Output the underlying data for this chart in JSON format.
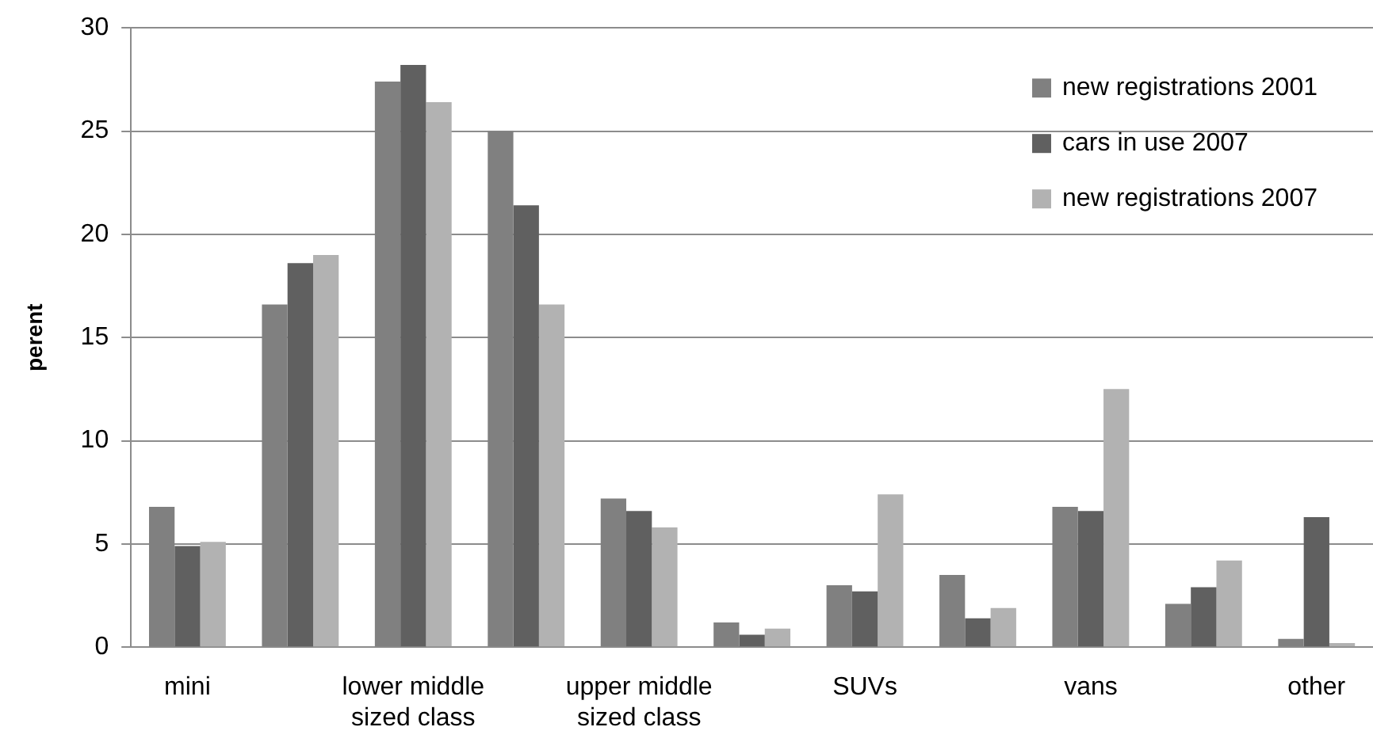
{
  "chart_data": {
    "type": "bar",
    "ylabel": "perent",
    "categories": [
      "mini",
      null,
      "lower middle sized class",
      null,
      "upper middle sized class",
      null,
      "SUVs",
      null,
      "vans",
      null,
      "other"
    ],
    "series": [
      {
        "name": "new registrations 2001",
        "color": "#808080",
        "values": [
          6.8,
          16.6,
          27.4,
          25.0,
          7.2,
          1.2,
          3.0,
          3.5,
          6.8,
          2.1,
          0.4
        ]
      },
      {
        "name": "cars in use 2007",
        "color": "#606060",
        "values": [
          4.9,
          18.6,
          28.2,
          21.4,
          6.6,
          0.6,
          2.7,
          1.4,
          6.6,
          2.9,
          6.3
        ]
      },
      {
        "name": "new registrations 2007",
        "color": "#b2b2b2",
        "values": [
          5.1,
          19.0,
          26.4,
          16.6,
          5.8,
          0.9,
          7.4,
          1.9,
          12.5,
          4.2,
          0.2
        ]
      }
    ],
    "ylim": [
      0,
      30
    ],
    "yticks": [
      0,
      5,
      10,
      15,
      20,
      25,
      30
    ],
    "grid": "y",
    "legend": "top right"
  }
}
